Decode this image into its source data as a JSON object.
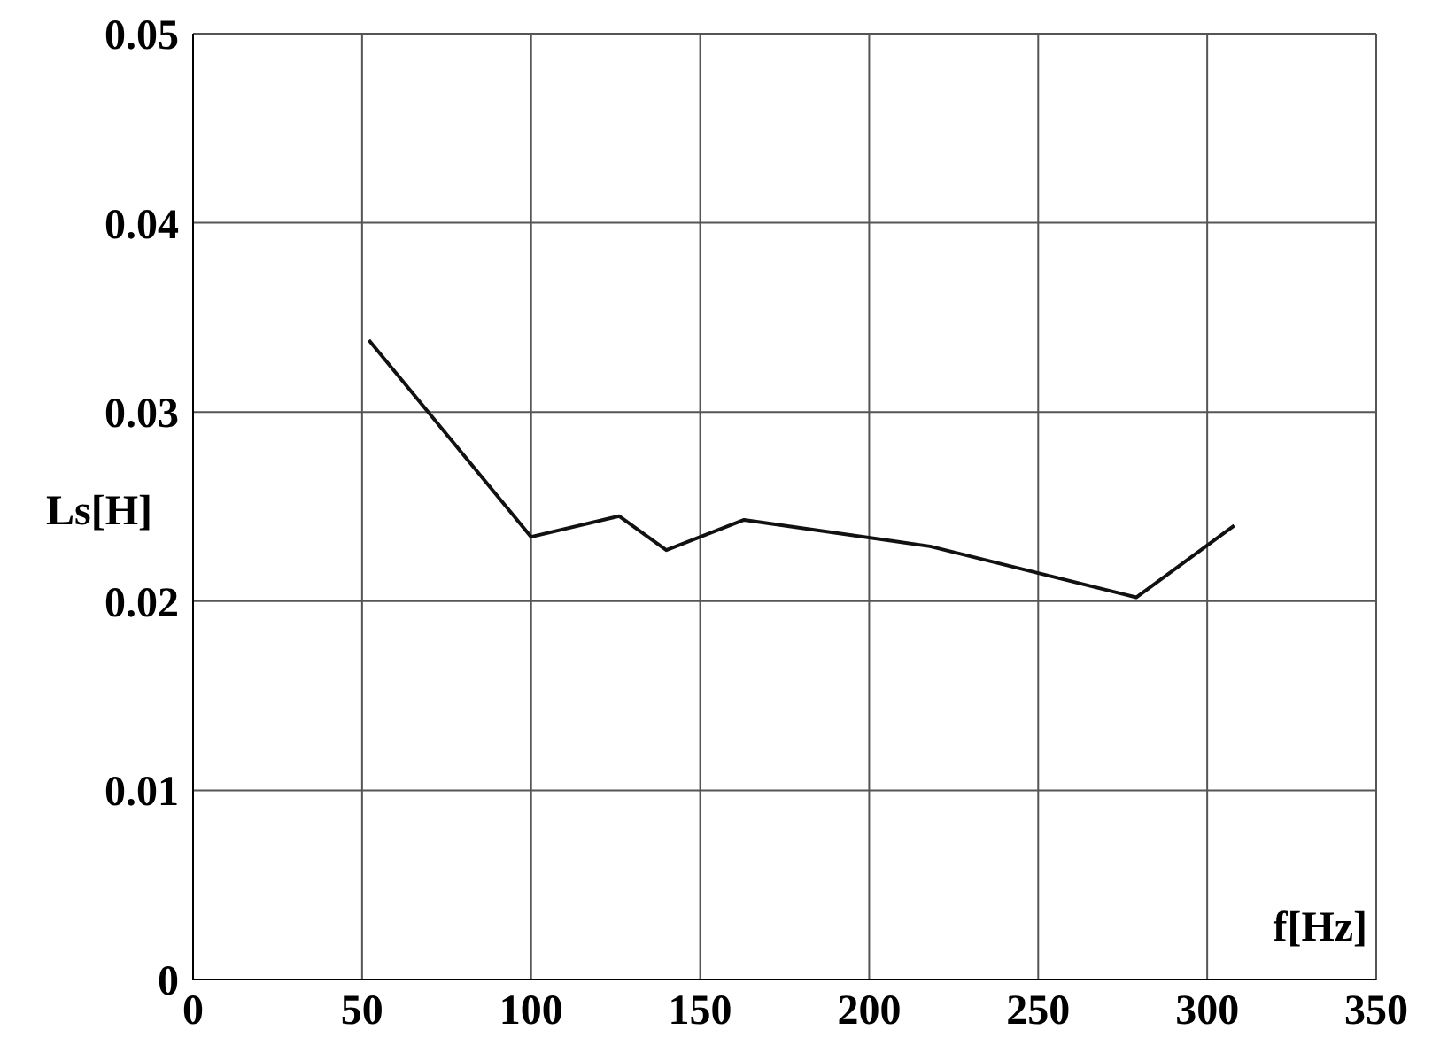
{
  "chart_data": {
    "type": "line",
    "xlabel": "f[Hz]",
    "ylabel": "Ls[H]",
    "x": [
      52,
      100,
      126,
      140,
      163,
      218,
      279,
      308
    ],
    "series": [
      {
        "color": "#111111",
        "values": [
          0.0338,
          0.0234,
          0.0245,
          0.0227,
          0.0243,
          0.0229,
          0.0202,
          0.024
        ]
      }
    ],
    "xlim": [
      0,
      350
    ],
    "xticks": [
      0,
      50,
      100,
      150,
      200,
      250,
      300,
      350
    ],
    "ylim": [
      0,
      0.05
    ],
    "yticks": [
      0,
      0.01,
      0.02,
      0.03,
      0.04,
      0.05
    ],
    "grid": true,
    "marker": "none",
    "line_style": "solid"
  }
}
